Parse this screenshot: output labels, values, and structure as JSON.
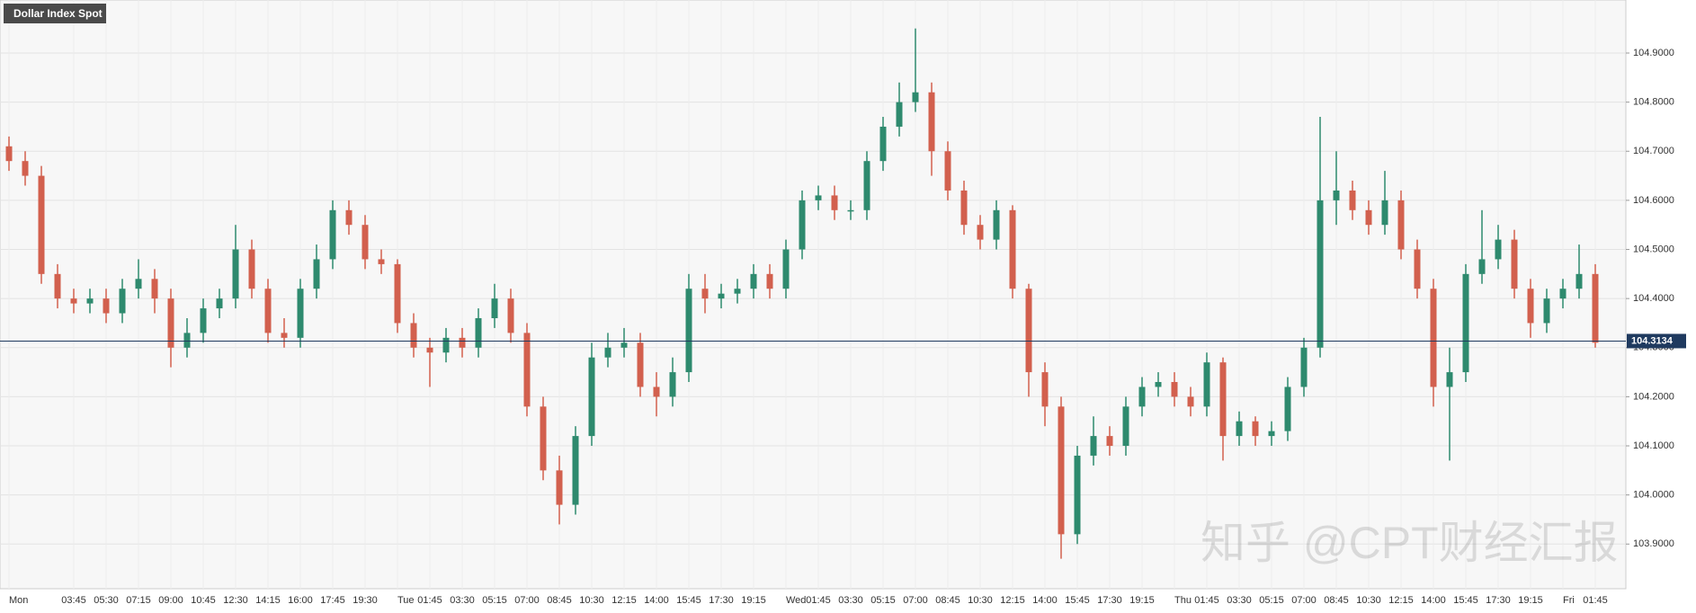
{
  "chart_data": {
    "type": "candlestick",
    "title": "Dollar Index Spot",
    "watermark": "知乎 @CPT财经汇报",
    "categories": [
      "Mon",
      null,
      null,
      null,
      "03:45",
      null,
      "05:30",
      null,
      "07:15",
      null,
      "09:00",
      null,
      "10:45",
      null,
      "12:30",
      null,
      "14:15",
      null,
      "16:00",
      null,
      "17:45",
      null,
      "19:30",
      null,
      "Tue",
      null,
      "01:45",
      null,
      "03:30",
      null,
      "05:15",
      null,
      "07:00",
      null,
      "08:45",
      null,
      "10:30",
      null,
      "12:15",
      null,
      "14:00",
      null,
      "15:45",
      null,
      "17:30",
      null,
      "19:15",
      null,
      "Wed",
      null,
      "01:45",
      null,
      "03:30",
      null,
      "05:15",
      null,
      "07:00",
      null,
      "08:45",
      null,
      "10:30",
      null,
      "12:15",
      null,
      "14:00",
      null,
      "15:45",
      null,
      "17:30",
      null,
      "19:15",
      null,
      "Thu",
      null,
      "01:45",
      null,
      "03:30",
      null,
      "05:15",
      null,
      "07:00",
      null,
      "08:45",
      null,
      "10:30",
      null,
      "12:15",
      null,
      "14:00",
      null,
      "15:45",
      null,
      "17:30",
      null,
      "19:15",
      null,
      "Fri",
      null,
      "01:45"
    ],
    "open": [
      104.71,
      104.68,
      104.65,
      104.45,
      104.4,
      104.39,
      104.4,
      104.37,
      104.42,
      104.44,
      104.4,
      104.3,
      104.33,
      104.38,
      104.4,
      104.5,
      104.42,
      104.33,
      104.32,
      104.42,
      104.48,
      104.58,
      104.55,
      104.48,
      104.47,
      104.35,
      104.3,
      104.29,
      104.32,
      104.3,
      104.36,
      104.4,
      104.33,
      104.18,
      104.05,
      103.98,
      104.12,
      104.28,
      104.3,
      104.31,
      104.22,
      104.2,
      104.25,
      104.42,
      104.4,
      104.41,
      104.42,
      104.45,
      104.42,
      104.5,
      104.6,
      104.61,
      104.58,
      104.58,
      104.68,
      104.75,
      104.8,
      104.82,
      104.7,
      104.62,
      104.55,
      104.52,
      104.58,
      104.42,
      104.25,
      104.18,
      103.92,
      104.08,
      104.12,
      104.1,
      104.18,
      104.22,
      104.23,
      104.2,
      104.18,
      104.27,
      104.12,
      104.15,
      104.12,
      104.13,
      104.22,
      104.3,
      104.6,
      104.62,
      104.58,
      104.55,
      104.6,
      104.5,
      104.42,
      104.22,
      104.25,
      104.45,
      104.48,
      104.52,
      104.42,
      104.35,
      104.4,
      104.42,
      104.45
    ],
    "high": [
      104.73,
      104.7,
      104.67,
      104.47,
      104.42,
      104.42,
      104.42,
      104.44,
      104.48,
      104.46,
      104.42,
      104.36,
      104.4,
      104.42,
      104.55,
      104.52,
      104.44,
      104.36,
      104.44,
      104.51,
      104.6,
      104.6,
      104.57,
      104.5,
      104.48,
      104.37,
      104.32,
      104.34,
      104.34,
      104.38,
      104.43,
      104.42,
      104.35,
      104.2,
      104.08,
      104.14,
      104.31,
      104.33,
      104.34,
      104.33,
      104.25,
      104.28,
      104.45,
      104.45,
      104.43,
      104.44,
      104.47,
      104.47,
      104.52,
      104.62,
      104.63,
      104.63,
      104.6,
      104.7,
      104.77,
      104.84,
      104.95,
      104.84,
      104.72,
      104.64,
      104.57,
      104.6,
      104.59,
      104.43,
      104.27,
      104.2,
      104.1,
      104.16,
      104.14,
      104.2,
      104.24,
      104.25,
      104.25,
      104.22,
      104.29,
      104.28,
      104.17,
      104.16,
      104.15,
      104.24,
      104.32,
      104.77,
      104.7,
      104.64,
      104.6,
      104.66,
      104.62,
      104.52,
      104.44,
      104.3,
      104.47,
      104.58,
      104.55,
      104.54,
      104.44,
      104.42,
      104.44,
      104.51,
      104.47
    ],
    "low": [
      104.66,
      104.63,
      104.43,
      104.38,
      104.37,
      104.37,
      104.35,
      104.35,
      104.4,
      104.37,
      104.26,
      104.28,
      104.31,
      104.36,
      104.38,
      104.4,
      104.31,
      104.3,
      104.3,
      104.4,
      104.46,
      104.53,
      104.46,
      104.45,
      104.33,
      104.28,
      104.22,
      104.27,
      104.28,
      104.28,
      104.34,
      104.31,
      104.16,
      104.03,
      103.94,
      103.96,
      104.1,
      104.26,
      104.28,
      104.2,
      104.16,
      104.18,
      104.23,
      104.37,
      104.38,
      104.39,
      104.4,
      104.4,
      104.4,
      104.48,
      104.58,
      104.56,
      104.56,
      104.56,
      104.66,
      104.73,
      104.78,
      104.65,
      104.6,
      104.53,
      104.5,
      104.5,
      104.4,
      104.2,
      104.14,
      103.87,
      103.9,
      104.06,
      104.08,
      104.08,
      104.16,
      104.2,
      104.18,
      104.16,
      104.16,
      104.07,
      104.1,
      104.1,
      104.1,
      104.11,
      104.2,
      104.28,
      104.55,
      104.56,
      104.53,
      104.53,
      104.48,
      104.4,
      104.18,
      104.07,
      104.23,
      104.43,
      104.46,
      104.4,
      104.32,
      104.33,
      104.38,
      104.4,
      104.3
    ],
    "close": [
      104.68,
      104.65,
      104.45,
      104.4,
      104.39,
      104.4,
      104.37,
      104.42,
      104.44,
      104.4,
      104.3,
      104.33,
      104.38,
      104.4,
      104.5,
      104.42,
      104.33,
      104.32,
      104.42,
      104.48,
      104.58,
      104.55,
      104.48,
      104.47,
      104.35,
      104.3,
      104.29,
      104.32,
      104.3,
      104.36,
      104.4,
      104.33,
      104.18,
      104.05,
      103.98,
      104.12,
      104.28,
      104.3,
      104.31,
      104.22,
      104.2,
      104.25,
      104.42,
      104.4,
      104.41,
      104.42,
      104.45,
      104.42,
      104.5,
      104.6,
      104.61,
      104.58,
      104.58,
      104.68,
      104.75,
      104.8,
      104.82,
      104.7,
      104.62,
      104.55,
      104.52,
      104.58,
      104.42,
      104.25,
      104.18,
      103.92,
      104.08,
      104.12,
      104.1,
      104.18,
      104.22,
      104.23,
      104.2,
      104.18,
      104.27,
      104.12,
      104.15,
      104.12,
      104.13,
      104.22,
      104.3,
      104.6,
      104.62,
      104.58,
      104.55,
      104.6,
      104.5,
      104.42,
      104.22,
      104.25,
      104.45,
      104.48,
      104.52,
      104.42,
      104.35,
      104.4,
      104.42,
      104.45,
      104.31
    ],
    "up_color": "#2e8a6e",
    "down_color": "#d2604e",
    "last_price": 104.3134,
    "last_price_color": "#1f3a5f",
    "ylim": [
      103.809,
      105.008
    ],
    "yticks": [
      {
        "value": 103.9,
        "label": "103.9000"
      },
      {
        "value": 104.0,
        "label": "104.0000"
      },
      {
        "value": 104.1,
        "label": "104.1000"
      },
      {
        "value": 104.2,
        "label": "104.2000"
      },
      {
        "value": 104.3,
        "label": "104.3000"
      },
      {
        "value": 104.4,
        "label": "104.4000"
      },
      {
        "value": 104.5,
        "label": "104.5000"
      },
      {
        "value": 104.6,
        "label": "104.6000"
      },
      {
        "value": 104.7,
        "label": "104.7000"
      },
      {
        "value": 104.8,
        "label": "104.8000"
      },
      {
        "value": 104.9,
        "label": "104.9000"
      }
    ],
    "grid": true
  }
}
